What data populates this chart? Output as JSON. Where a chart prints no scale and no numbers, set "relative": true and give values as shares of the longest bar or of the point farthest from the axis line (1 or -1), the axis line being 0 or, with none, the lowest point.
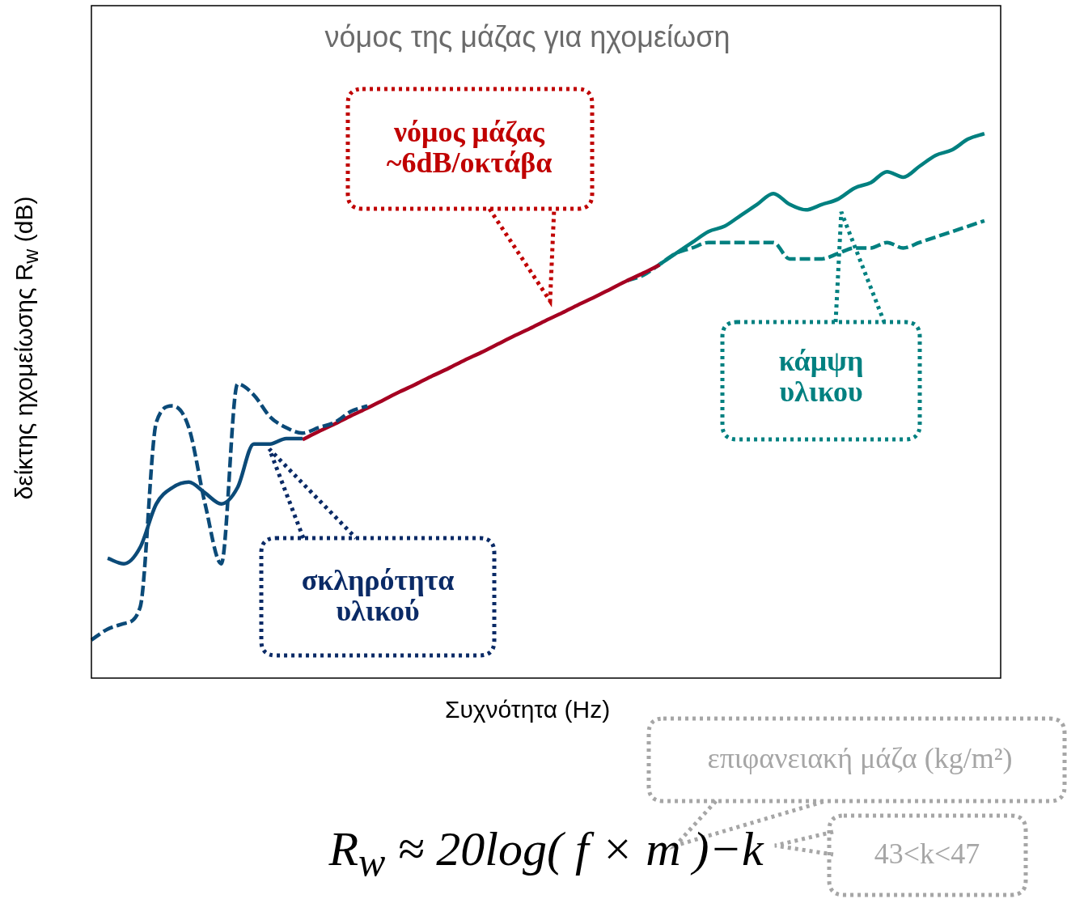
{
  "chart_data": {
    "type": "line",
    "relative": true,
    "title": "νόμος της μάζας για ηχομείωση",
    "xlabel": "Συχνότητα (Hz)",
    "ylabel": "δείκτης ηχομείωσης R$_{w}$ (dB)",
    "categories": [
      null,
      null,
      null,
      null,
      null,
      null,
      null,
      null,
      null,
      null,
      null,
      null,
      null,
      null,
      null,
      null,
      null,
      null,
      null,
      null,
      null,
      null,
      null,
      null,
      null,
      null,
      null,
      null,
      null,
      null,
      null,
      null,
      null,
      null,
      null,
      null,
      null,
      null,
      null,
      null,
      null,
      null,
      null,
      null,
      null,
      null,
      null,
      null,
      null,
      null,
      null,
      null,
      null,
      null,
      null,
      null,
      null
    ],
    "legend": false,
    "series": [
      {
        "color": "#0b4a78",
        "line_style": "solid",
        "values": [
          null,
          0.22,
          0.21,
          0.24,
          0.32,
          0.35,
          0.36,
          0.34,
          0.32,
          0.35,
          0.43,
          0.43,
          0.44,
          0.44,
          null,
          null,
          null,
          null,
          null,
          null,
          null,
          null,
          null,
          null,
          null,
          null,
          null,
          null,
          null,
          null,
          null,
          null,
          null,
          null,
          null,
          null,
          null,
          null,
          null,
          null,
          null,
          null,
          null,
          null,
          null,
          null,
          null,
          null,
          null,
          null,
          null,
          null,
          null,
          null,
          null,
          null,
          null
        ]
      },
      {
        "color": "#0b4a78",
        "line_style": "dashed",
        "values": [
          0.07,
          0.09,
          0.1,
          0.13,
          0.47,
          0.5,
          0.46,
          0.32,
          0.21,
          0.54,
          0.52,
          0.48,
          0.46,
          0.45,
          0.46,
          0.47,
          0.49,
          0.5,
          null,
          null,
          null,
          null,
          null,
          null,
          null,
          null,
          null,
          null,
          null,
          null,
          null,
          null,
          null,
          null,
          null,
          null,
          null,
          null,
          null,
          null,
          null,
          null,
          null,
          null,
          null,
          null,
          null,
          null,
          null,
          null,
          null,
          null,
          null,
          null,
          null,
          null,
          null
        ]
      },
      {
        "color": "#a50021",
        "line_style": "solid",
        "values": [
          null,
          null,
          null,
          null,
          null,
          null,
          null,
          null,
          null,
          null,
          null,
          null,
          null,
          0.438,
          0.453,
          0.467,
          0.482,
          0.496,
          0.511,
          0.526,
          0.54,
          0.555,
          0.569,
          0.584,
          0.598,
          0.613,
          0.628,
          0.642,
          0.657,
          0.671,
          0.686,
          0.7,
          0.715,
          0.73,
          0.744,
          0.759,
          null,
          null,
          null,
          null,
          null,
          null,
          null,
          null,
          null,
          null,
          null,
          null,
          null,
          null,
          null,
          null,
          null,
          null,
          null,
          null,
          null
        ]
      },
      {
        "color": "#008080",
        "line_style": "dashed",
        "values": [
          null,
          null,
          null,
          null,
          null,
          null,
          null,
          null,
          null,
          null,
          null,
          null,
          null,
          null,
          null,
          null,
          null,
          null,
          null,
          null,
          null,
          null,
          null,
          null,
          null,
          null,
          null,
          null,
          null,
          null,
          null,
          null,
          null,
          0.73,
          0.74,
          0.76,
          0.78,
          0.79,
          0.8,
          0.8,
          0.8,
          0.8,
          0.8,
          0.77,
          0.77,
          0.77,
          0.78,
          0.79,
          0.79,
          0.8,
          0.79,
          0.8,
          0.81,
          0.82,
          0.83,
          0.84,
          null
        ]
      },
      {
        "color": "#008080",
        "line_style": "solid",
        "values": [
          null,
          null,
          null,
          null,
          null,
          null,
          null,
          null,
          null,
          null,
          null,
          null,
          null,
          null,
          null,
          null,
          null,
          null,
          null,
          null,
          null,
          null,
          null,
          null,
          null,
          null,
          null,
          null,
          null,
          null,
          null,
          null,
          null,
          null,
          null,
          0.76,
          0.78,
          0.8,
          0.82,
          0.83,
          0.85,
          0.87,
          0.89,
          0.87,
          0.86,
          0.87,
          0.88,
          0.9,
          0.91,
          0.93,
          0.92,
          0.94,
          0.96,
          0.97,
          0.99,
          1,
          null
        ]
      }
    ],
    "annotations": [
      "νόμος μάζας\n~6dB/οκτάβα",
      "σκληρότητα\nυλικού",
      "κάμψη\nυλικου",
      "επιφανειακή μάζα (kg/m²)",
      "43<k<47",
      "R$_{w}$ ≈ 20log( f × m )−k"
    ]
  }
}
